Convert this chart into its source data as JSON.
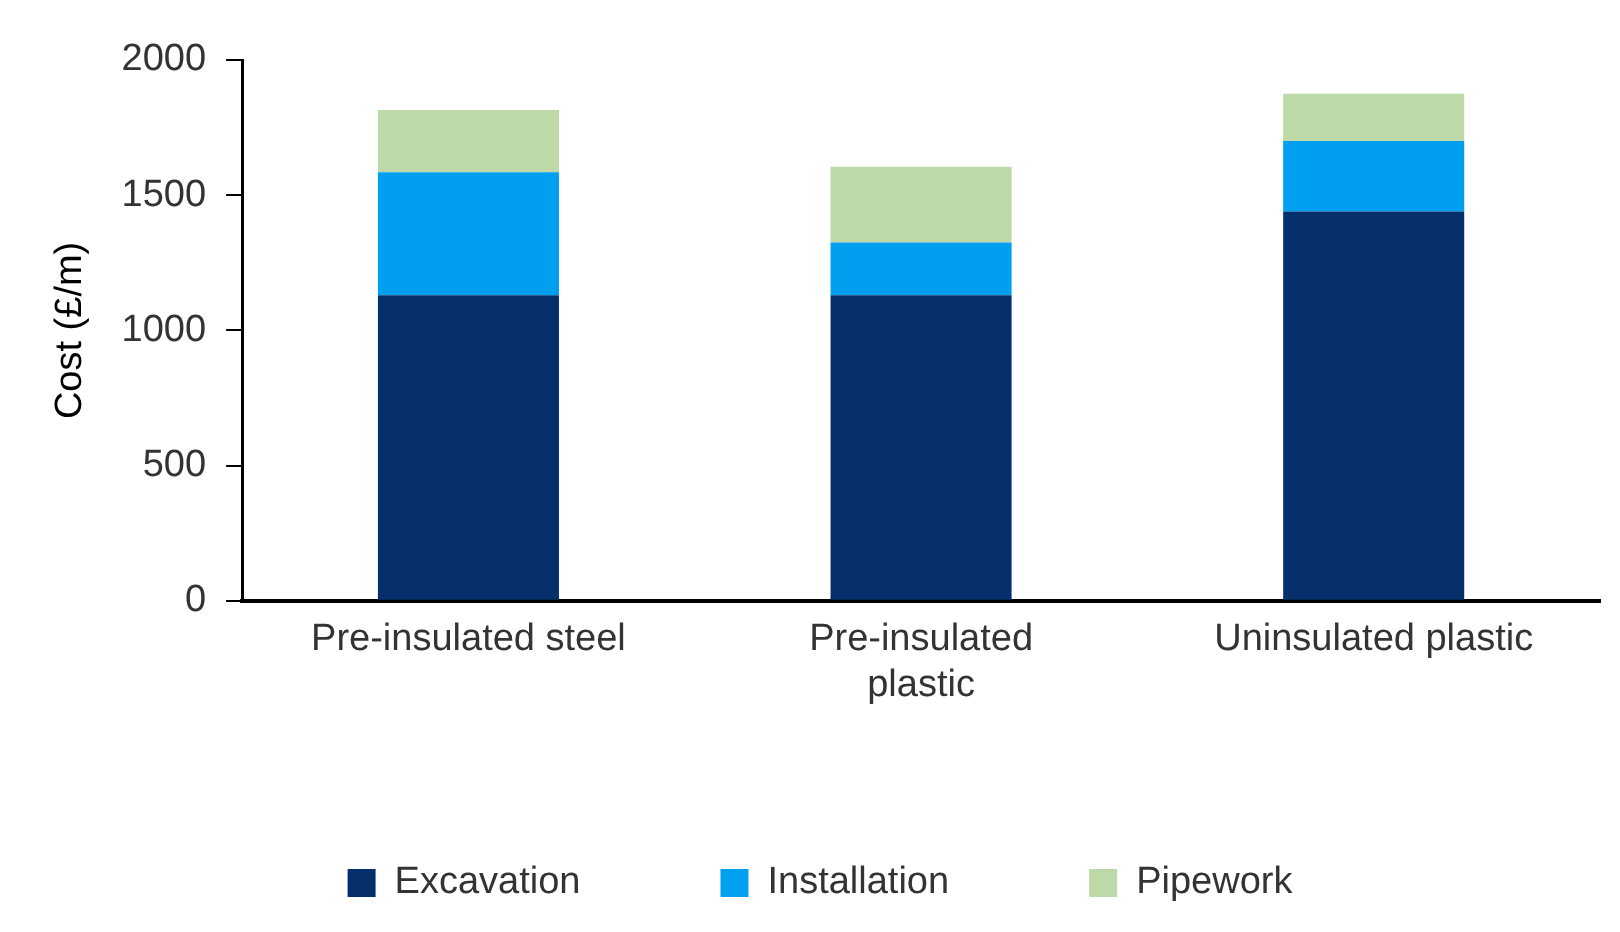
{
  "chart_data": {
    "type": "bar",
    "stacked": true,
    "ylabel": "Cost (£/m)",
    "categories": [
      "Pre-insulated steel",
      "Pre-insulated plastic",
      "Uninsulated plastic"
    ],
    "series": [
      {
        "name": "Excavation",
        "color": "#06306b",
        "values": [
          1130,
          1130,
          1440
        ]
      },
      {
        "name": "Installation",
        "color": "#009ff0",
        "values": [
          455,
          195,
          260
        ]
      },
      {
        "name": "Pipework",
        "color": "#bdd9a8",
        "values": [
          230,
          280,
          175
        ]
      }
    ],
    "ylim": [
      0,
      2000
    ],
    "yticks": [
      0,
      500,
      1000,
      1500,
      2000
    ],
    "grid": false,
    "legend": "bottom"
  }
}
